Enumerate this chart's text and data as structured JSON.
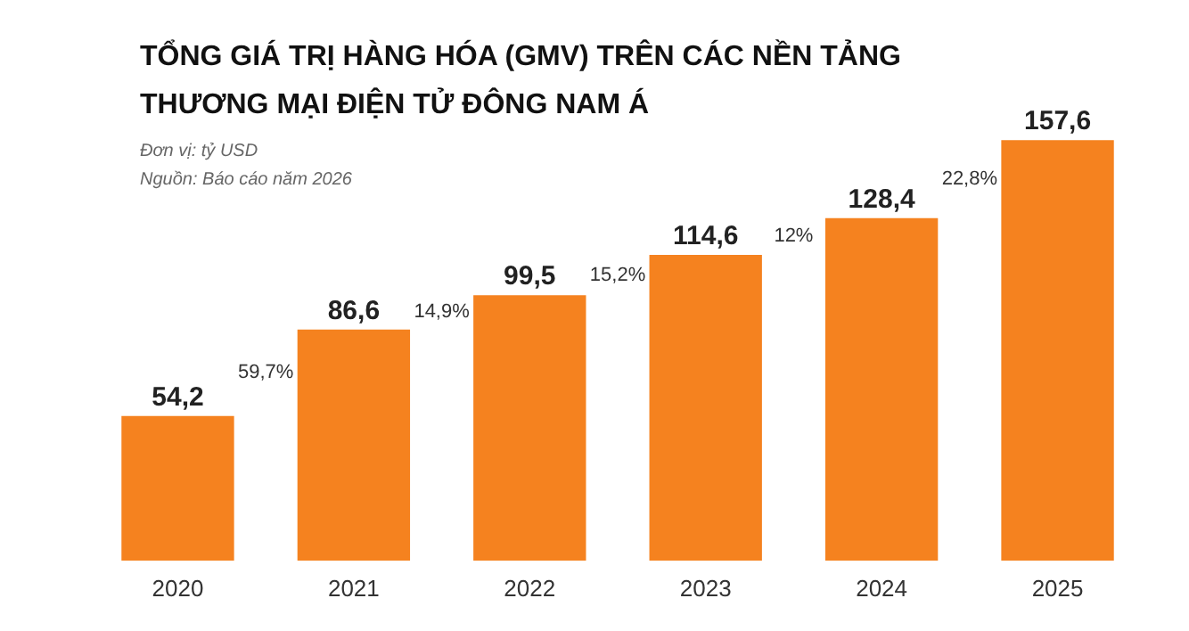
{
  "chart_data": {
    "type": "bar",
    "title": "TỔNG GIÁ TRỊ HÀNG HÓA (GMV) TRÊN CÁC NỀN TẢNG THƯƠNG MẠI ĐIỆN TỬ ĐÔNG NAM Á",
    "subtitle": "Đơn vị: tỷ USD",
    "annotations": [
      "Nguồn: Báo cáo năm 2026",
      "59,7%",
      "14,9%",
      "15,2%",
      "12%",
      "22,8%"
    ],
    "categories": [
      "2020",
      "2021",
      "2022",
      "2023",
      "2024",
      "2025"
    ],
    "values": [
      54.2,
      86.6,
      99.5,
      114.6,
      128.4,
      157.6
    ],
    "value_labels": [
      "54,2",
      "86,6",
      "99,5",
      "114,6",
      "128,4",
      "157,6"
    ],
    "color": "#f5821f",
    "grid": false,
    "tick_labels": "x"
  }
}
